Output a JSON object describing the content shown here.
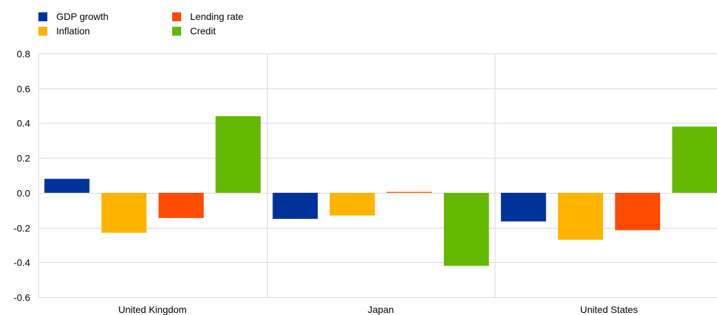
{
  "chart_data": {
    "type": "bar",
    "categories": [
      "United Kingdom",
      "Japan",
      "United States"
    ],
    "series": [
      {
        "name": "GDP growth",
        "color": "#003399",
        "values": [
          0.08,
          -0.15,
          -0.165
        ]
      },
      {
        "name": "Inflation",
        "color": "#ffb400",
        "values": [
          -0.23,
          -0.13,
          -0.27
        ]
      },
      {
        "name": "Lending rate",
        "color": "#ff4b00",
        "values": [
          -0.145,
          0.005,
          -0.215
        ]
      },
      {
        "name": "Credit",
        "color": "#65b800",
        "values": [
          0.44,
          -0.42,
          0.38
        ]
      }
    ],
    "ylim": [
      -0.6,
      0.8
    ],
    "yticks": [
      -0.6,
      -0.4,
      -0.2,
      0.0,
      0.2,
      0.4,
      0.6,
      0.8
    ],
    "ytick_labels": [
      "-0.6",
      "-0.4",
      "-0.2",
      "0.0",
      "0.2",
      "0.4",
      "0.6",
      "0.8"
    ],
    "title": "",
    "xlabel": "",
    "ylabel": "",
    "grid": true,
    "legend_position": "top-left"
  }
}
